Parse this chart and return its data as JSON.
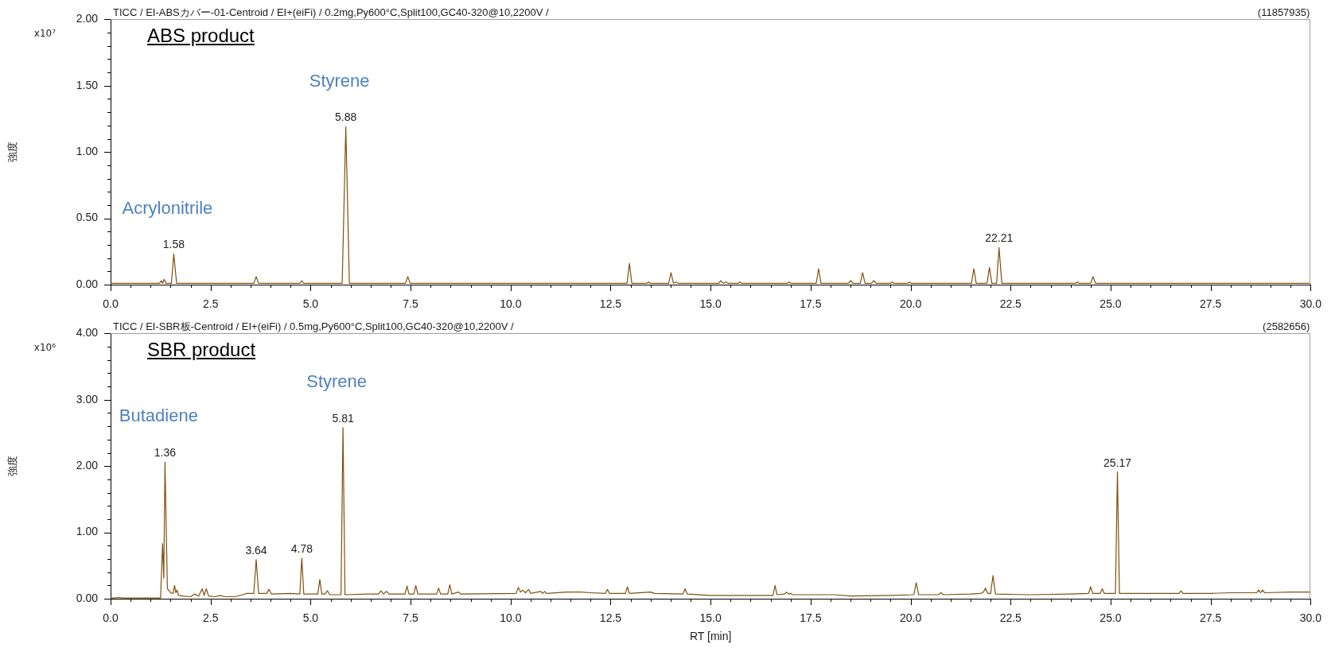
{
  "chart_data": [
    {
      "type": "line",
      "title": "ABS product",
      "subtitle": "TICC / EI-ABSカバー-01-Centroid / EI+(eiFi) / 0.2mg,Py600°C,Split100,GC40-320@10,2200V /",
      "ylabel": "強度",
      "annotations": [
        "x10⁷",
        "(11857935)",
        {
          "text": "1.58",
          "x": 1.58,
          "y": 0.23
        },
        {
          "text": "Acrylonitrile",
          "x": 1.58,
          "y": 0.23
        },
        {
          "text": "5.88",
          "x": 5.88,
          "y": 1.19
        },
        {
          "text": "Styrene",
          "x": 5.88,
          "y": 1.19
        },
        {
          "text": "22.21",
          "x": 22.21,
          "y": 0.28
        }
      ],
      "series": [
        {
          "color": "#80500f",
          "x": [
            0,
            1.22,
            1.27,
            1.3,
            1.34,
            1.38,
            1.52,
            1.58,
            1.65,
            3.58,
            3.64,
            3.7,
            4.73,
            4.78,
            4.83,
            5.79,
            5.88,
            5.97,
            7.37,
            7.43,
            7.49,
            12.91,
            12.97,
            13.03,
            13.41,
            13.45,
            13.49,
            13.95,
            14.01,
            14.07,
            14.13,
            14.19,
            15.21,
            15.25,
            15.32,
            15.38,
            15.44,
            15.69,
            15.73,
            15.77,
            16.92,
            16.96,
            17.0,
            17.64,
            17.7,
            17.76,
            18.44,
            18.5,
            18.56,
            18.74,
            18.8,
            18.86,
            19.02,
            19.08,
            19.14,
            19.5,
            19.54,
            19.58,
            19.93,
            19.97,
            20.01,
            21.52,
            21.58,
            21.64,
            21.91,
            21.97,
            22.03,
            22.15,
            22.21,
            22.28,
            24.13,
            24.17,
            24.21,
            24.5,
            24.56,
            24.62,
            30
          ],
          "values": [
            0.01,
            0.01,
            0.03,
            0.01,
            0.04,
            0.01,
            0.01,
            0.23,
            0.01,
            0.01,
            0.06,
            0.01,
            0.01,
            0.03,
            0.01,
            0.01,
            1.19,
            0.01,
            0.01,
            0.06,
            0.01,
            0.01,
            0.16,
            0.01,
            0.01,
            0.02,
            0.01,
            0.01,
            0.09,
            0.01,
            0.02,
            0.01,
            0.01,
            0.03,
            0.01,
            0.02,
            0.01,
            0.01,
            0.02,
            0.01,
            0.01,
            0.02,
            0.01,
            0.01,
            0.12,
            0.01,
            0.01,
            0.03,
            0.01,
            0.01,
            0.09,
            0.01,
            0.01,
            0.03,
            0.01,
            0.01,
            0.02,
            0.01,
            0.01,
            0.02,
            0.01,
            0.01,
            0.12,
            0.01,
            0.01,
            0.13,
            0.01,
            0.01,
            0.28,
            0.01,
            0.01,
            0.02,
            0.01,
            0.01,
            0.06,
            0.01,
            0.01
          ]
        }
      ],
      "xlim": [
        0,
        30
      ],
      "xticks": [
        {
          "value": 0,
          "label": "0.0"
        },
        {
          "value": 0.5,
          "label": null
        },
        {
          "value": 1,
          "label": null
        },
        {
          "value": 1.5,
          "label": null
        },
        {
          "value": 2,
          "label": null
        },
        2.5,
        {
          "value": 3,
          "label": null
        },
        {
          "value": 3.5,
          "label": null
        },
        {
          "value": 4,
          "label": null
        },
        {
          "value": 4.5,
          "label": null
        },
        {
          "value": 5,
          "label": "5.0"
        },
        {
          "value": 5.5,
          "label": null
        },
        {
          "value": 6,
          "label": null
        },
        {
          "value": 6.5,
          "label": null
        },
        {
          "value": 7,
          "label": null
        },
        7.5,
        {
          "value": 8,
          "label": null
        },
        {
          "value": 8.5,
          "label": null
        },
        {
          "value": 9,
          "label": null
        },
        {
          "value": 9.5,
          "label": null
        },
        {
          "value": 10,
          "label": "10.0"
        },
        {
          "value": 10.5,
          "label": null
        },
        {
          "value": 11,
          "label": null
        },
        {
          "value": 11.5,
          "label": null
        },
        {
          "value": 12,
          "label": null
        },
        12.5,
        {
          "value": 13,
          "label": null
        },
        {
          "value": 13.5,
          "label": null
        },
        {
          "value": 14,
          "label": null
        },
        {
          "value": 14.5,
          "label": null
        },
        {
          "value": 15,
          "label": "15.0"
        },
        {
          "value": 15.5,
          "label": null
        },
        {
          "value": 16,
          "label": null
        },
        {
          "value": 16.5,
          "label": null
        },
        {
          "value": 17,
          "label": null
        },
        17.5,
        {
          "value": 18,
          "label": null
        },
        {
          "value": 18.5,
          "label": null
        },
        {
          "value": 19,
          "label": null
        },
        {
          "value": 19.5,
          "label": null
        },
        {
          "value": 20,
          "label": "20.0"
        },
        {
          "value": 20.5,
          "label": null
        },
        {
          "value": 21,
          "label": null
        },
        {
          "value": 21.5,
          "label": null
        },
        {
          "value": 22,
          "label": null
        },
        22.5,
        {
          "value": 23,
          "label": null
        },
        {
          "value": 23.5,
          "label": null
        },
        {
          "value": 24,
          "label": null
        },
        {
          "value": 24.5,
          "label": null
        },
        {
          "value": 25,
          "label": "25.0"
        },
        {
          "value": 25.5,
          "label": null
        },
        {
          "value": 26,
          "label": null
        },
        {
          "value": 26.5,
          "label": null
        },
        {
          "value": 27,
          "label": null
        },
        27.5,
        {
          "value": 28,
          "label": null
        },
        {
          "value": 28.5,
          "label": null
        },
        {
          "value": 29,
          "label": null
        },
        {
          "value": 29.5,
          "label": null
        },
        {
          "value": 30,
          "label": "30.0"
        }
      ],
      "ylim": [
        0,
        2
      ],
      "yticks": [
        {
          "value": 0,
          "label": "0.00"
        },
        {
          "value": 0.1,
          "label": null
        },
        {
          "value": 0.2,
          "label": null
        },
        {
          "value": 0.3,
          "label": null
        },
        {
          "value": 0.4,
          "label": null
        },
        {
          "value": 0.5,
          "label": "0.50"
        },
        {
          "value": 0.6,
          "label": null
        },
        {
          "value": 0.7,
          "label": null
        },
        {
          "value": 0.8,
          "label": null
        },
        {
          "value": 0.9,
          "label": null
        },
        {
          "value": 1,
          "label": "1.00"
        },
        {
          "value": 1.1,
          "label": null
        },
        {
          "value": 1.2,
          "label": null
        },
        {
          "value": 1.3,
          "label": null
        },
        {
          "value": 1.4,
          "label": null
        },
        {
          "value": 1.5,
          "label": "1.50"
        },
        {
          "value": 1.6,
          "label": null
        },
        {
          "value": 1.7,
          "label": null
        },
        {
          "value": 1.8,
          "label": null
        },
        {
          "value": 1.9,
          "label": null
        },
        {
          "value": 2,
          "label": "2.00"
        }
      ]
    },
    {
      "type": "line",
      "title": "SBR product",
      "subtitle": "TICC / EI-SBR板-Centroid / EI+(eiFi) / 0.5mg,Py600°C,Split100,GC40-320@10,2200V /",
      "xlabel": "RT [min]",
      "ylabel": "強度",
      "annotations": [
        "x10⁶",
        "(2582656)",
        {
          "text": "1.36",
          "x": 1.36,
          "y": 2.06
        },
        {
          "text": "Butadiene",
          "x": 1.36,
          "y": 2.06
        },
        {
          "text": "3.64",
          "x": 3.64,
          "y": 0.59
        },
        {
          "text": "4.78",
          "x": 4.78,
          "y": 0.61
        },
        {
          "text": "5.81",
          "x": 5.81,
          "y": 2.58
        },
        {
          "text": "Styrene",
          "x": 5.81,
          "y": 2.58
        },
        {
          "text": "25.17",
          "x": 25.17,
          "y": 1.91
        }
      ],
      "series": [
        {
          "color": "#80500f",
          "x": [
            0,
            0.1,
            0.2,
            0.3,
            1.25,
            1.3,
            1.33,
            1.36,
            1.42,
            1.5,
            1.56,
            1.6,
            1.63,
            1.66,
            1.7,
            1.8,
            2.0,
            2.1,
            2.2,
            2.29,
            2.34,
            2.39,
            2.45,
            2.6,
            2.75,
            2.85,
            3.1,
            3.3,
            3.4,
            3.58,
            3.64,
            3.7,
            3.9,
            3.96,
            4.02,
            4.5,
            4.73,
            4.78,
            4.83,
            5.18,
            5.23,
            5.28,
            5.36,
            5.42,
            5.48,
            5.76,
            5.81,
            5.86,
            6.4,
            6.7,
            6.76,
            6.82,
            6.9,
            6.96,
            7.36,
            7.41,
            7.46,
            7.58,
            7.63,
            7.68,
            8.15,
            8.2,
            8.25,
            8.43,
            8.48,
            8.53,
            8.7,
            8.75,
            10.14,
            10.19,
            10.25,
            10.3,
            10.37,
            10.45,
            10.5,
            10.75,
            10.8,
            10.85,
            10.9,
            11.4,
            11.75,
            12.0,
            12.37,
            12.42,
            12.47,
            12.87,
            12.92,
            12.97,
            13.5,
            13.6,
            14.31,
            14.36,
            14.42,
            15.0,
            16.0,
            16.56,
            16.61,
            16.66,
            16.85,
            16.9,
            16.95,
            17.0,
            17.05,
            17.6,
            18.1,
            18.5,
            19.5,
            20.08,
            20.14,
            20.2,
            20.7,
            20.76,
            20.82,
            21.5,
            21.75,
            21.82,
            21.87,
            21.93,
            22.0,
            22.06,
            22.12,
            23.0,
            24.0,
            24.45,
            24.5,
            24.55,
            24.74,
            24.79,
            24.84,
            25.12,
            25.17,
            25.22,
            26.0,
            26.71,
            26.76,
            26.81,
            27.5,
            28.0,
            28.65,
            28.7,
            28.75,
            28.8,
            28.85,
            29.5,
            30
          ],
          "values": [
            0.01,
            0.01,
            0.02,
            0.01,
            0.01,
            0.83,
            0.31,
            2.06,
            0.15,
            0.09,
            0.08,
            0.2,
            0.09,
            0.13,
            0.05,
            0.04,
            0.03,
            0.07,
            0.04,
            0.15,
            0.05,
            0.15,
            0.04,
            0.03,
            0.05,
            0.03,
            0.03,
            0.06,
            0.08,
            0.08,
            0.59,
            0.08,
            0.08,
            0.14,
            0.07,
            0.08,
            0.07,
            0.61,
            0.07,
            0.07,
            0.29,
            0.07,
            0.07,
            0.12,
            0.06,
            0.06,
            2.58,
            0.06,
            0.07,
            0.07,
            0.12,
            0.07,
            0.11,
            0.07,
            0.07,
            0.19,
            0.07,
            0.07,
            0.2,
            0.07,
            0.07,
            0.16,
            0.07,
            0.07,
            0.21,
            0.07,
            0.1,
            0.07,
            0.08,
            0.17,
            0.1,
            0.13,
            0.09,
            0.14,
            0.08,
            0.11,
            0.08,
            0.11,
            0.08,
            0.1,
            0.1,
            0.09,
            0.08,
            0.14,
            0.08,
            0.08,
            0.18,
            0.08,
            0.1,
            0.08,
            0.07,
            0.15,
            0.07,
            0.05,
            0.05,
            0.05,
            0.2,
            0.06,
            0.07,
            0.1,
            0.07,
            0.08,
            0.06,
            0.06,
            0.06,
            0.04,
            0.05,
            0.06,
            0.24,
            0.06,
            0.06,
            0.09,
            0.06,
            0.07,
            0.08,
            0.1,
            0.16,
            0.08,
            0.08,
            0.35,
            0.07,
            0.06,
            0.07,
            0.08,
            0.18,
            0.08,
            0.08,
            0.15,
            0.08,
            0.08,
            1.91,
            0.08,
            0.08,
            0.08,
            0.12,
            0.08,
            0.08,
            0.09,
            0.09,
            0.13,
            0.09,
            0.13,
            0.09,
            0.1,
            0.1
          ]
        }
      ],
      "xlim": [
        0,
        30
      ],
      "xticks": [
        {
          "value": 0,
          "label": "0.0"
        },
        {
          "value": 0.5,
          "label": null
        },
        {
          "value": 1,
          "label": null
        },
        {
          "value": 1.5,
          "label": null
        },
        {
          "value": 2,
          "label": null
        },
        2.5,
        {
          "value": 3,
          "label": null
        },
        {
          "value": 3.5,
          "label": null
        },
        {
          "value": 4,
          "label": null
        },
        {
          "value": 4.5,
          "label": null
        },
        {
          "value": 5,
          "label": "5.0"
        },
        {
          "value": 5.5,
          "label": null
        },
        {
          "value": 6,
          "label": null
        },
        {
          "value": 6.5,
          "label": null
        },
        {
          "value": 7,
          "label": null
        },
        7.5,
        {
          "value": 8,
          "label": null
        },
        {
          "value": 8.5,
          "label": null
        },
        {
          "value": 9,
          "label": null
        },
        {
          "value": 9.5,
          "label": null
        },
        {
          "value": 10,
          "label": "10.0"
        },
        {
          "value": 10.5,
          "label": null
        },
        {
          "value": 11,
          "label": null
        },
        {
          "value": 11.5,
          "label": null
        },
        {
          "value": 12,
          "label": null
        },
        12.5,
        {
          "value": 13,
          "label": null
        },
        {
          "value": 13.5,
          "label": null
        },
        {
          "value": 14,
          "label": null
        },
        {
          "value": 14.5,
          "label": null
        },
        {
          "value": 15,
          "label": "15.0"
        },
        {
          "value": 15.5,
          "label": null
        },
        {
          "value": 16,
          "label": null
        },
        {
          "value": 16.5,
          "label": null
        },
        {
          "value": 17,
          "label": null
        },
        17.5,
        {
          "value": 18,
          "label": null
        },
        {
          "value": 18.5,
          "label": null
        },
        {
          "value": 19,
          "label": null
        },
        {
          "value": 19.5,
          "label": null
        },
        {
          "value": 20,
          "label": "20.0"
        },
        {
          "value": 20.5,
          "label": null
        },
        {
          "value": 21,
          "label": null
        },
        {
          "value": 21.5,
          "label": null
        },
        {
          "value": 22,
          "label": null
        },
        22.5,
        {
          "value": 23,
          "label": null
        },
        {
          "value": 23.5,
          "label": null
        },
        {
          "value": 24,
          "label": null
        },
        {
          "value": 24.5,
          "label": null
        },
        {
          "value": 25,
          "label": "25.0"
        },
        {
          "value": 25.5,
          "label": null
        },
        {
          "value": 26,
          "label": null
        },
        {
          "value": 26.5,
          "label": null
        },
        {
          "value": 27,
          "label": null
        },
        27.5,
        {
          "value": 28,
          "label": null
        },
        {
          "value": 28.5,
          "label": null
        },
        {
          "value": 29,
          "label": null
        },
        {
          "value": 29.5,
          "label": null
        },
        {
          "value": 30,
          "label": "30.0"
        }
      ],
      "ylim": [
        0,
        4
      ],
      "yticks": [
        {
          "value": 0,
          "label": "0.00"
        },
        {
          "value": 0.2,
          "label": null
        },
        {
          "value": 0.4,
          "label": null
        },
        {
          "value": 0.6,
          "label": null
        },
        {
          "value": 0.8,
          "label": null
        },
        {
          "value": 1,
          "label": "1.00"
        },
        {
          "value": 1.2,
          "label": null
        },
        {
          "value": 1.4,
          "label": null
        },
        {
          "value": 1.6,
          "label": null
        },
        {
          "value": 1.8,
          "label": null
        },
        {
          "value": 2,
          "label": "2.00"
        },
        {
          "value": 2.2,
          "label": null
        },
        {
          "value": 2.4,
          "label": null
        },
        {
          "value": 2.6,
          "label": null
        },
        {
          "value": 2.8,
          "label": null
        },
        {
          "value": 3,
          "label": "3.00"
        },
        {
          "value": 3.2,
          "label": null
        },
        {
          "value": 3.4,
          "label": null
        },
        {
          "value": 3.6,
          "label": null
        },
        {
          "value": 3.8,
          "label": null
        },
        {
          "value": 4,
          "label": "4.00"
        }
      ]
    }
  ]
}
